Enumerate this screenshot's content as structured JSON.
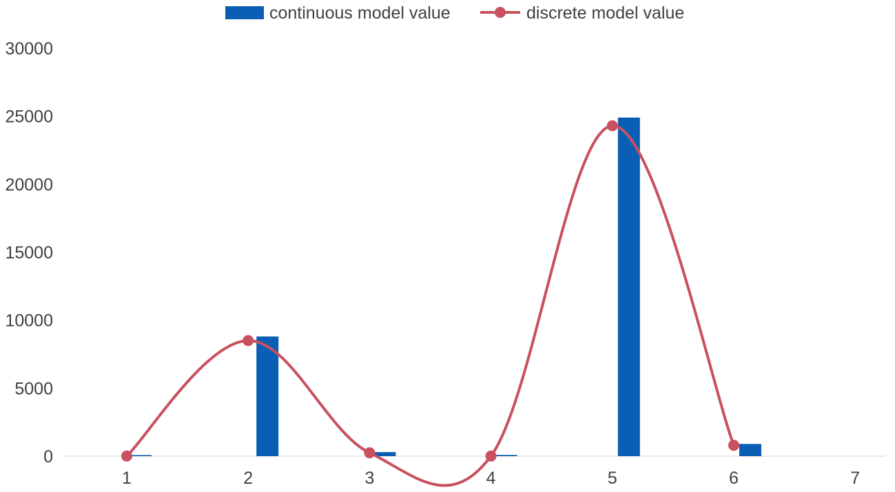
{
  "chart_data": {
    "type": "bar",
    "title": "",
    "xlabel": "",
    "ylabel": "",
    "categories": [
      "1",
      "2",
      "3",
      "4",
      "5",
      "6",
      "7"
    ],
    "ylim": [
      0,
      30000
    ],
    "yticks": [
      0,
      5000,
      10000,
      15000,
      20000,
      25000,
      30000
    ],
    "series": [
      {
        "name": "continuous model value",
        "kind": "bar",
        "color": "#0A5FB4",
        "values": [
          80,
          8800,
          300,
          90,
          24900,
          900,
          0
        ]
      },
      {
        "name": "discrete model value",
        "kind": "line",
        "smooth": true,
        "color": "#C9505F",
        "values": [
          10,
          8500,
          250,
          10,
          24300,
          800,
          null
        ]
      }
    ],
    "legend_position": "top-center",
    "grid": false
  }
}
